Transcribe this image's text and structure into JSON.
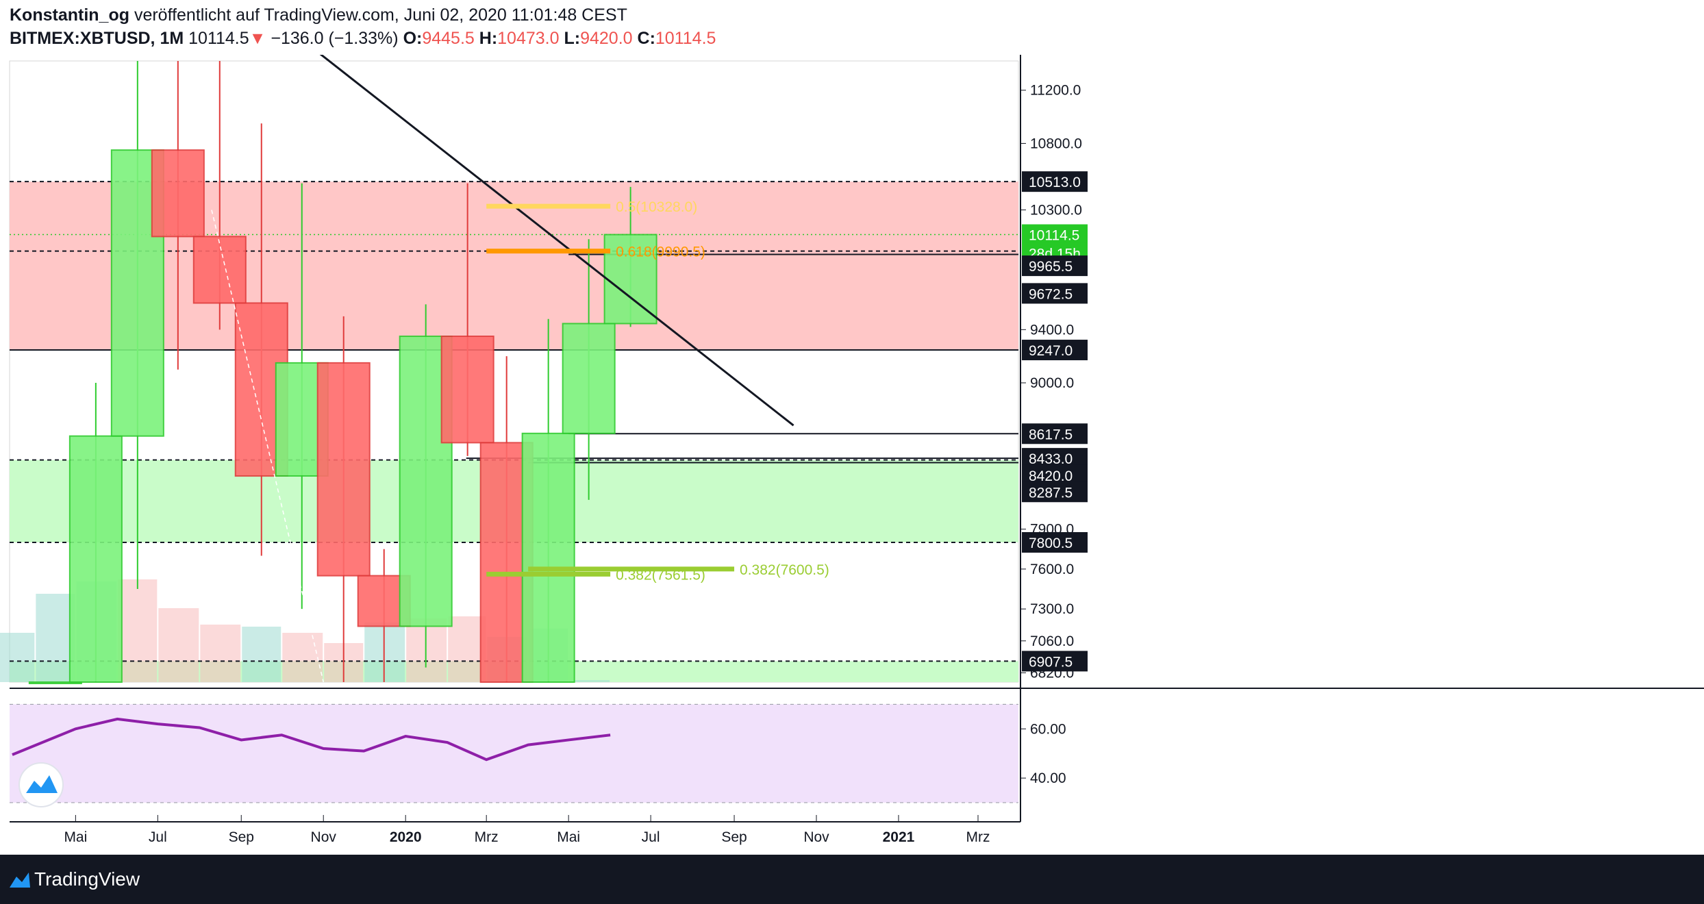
{
  "header": {
    "author": "Konstantin_og",
    "published_text": "veröffentlicht auf TradingView.com, Juni 02, 2020 11:01:48 CEST",
    "symbol": "BITMEX:XBTUSD, 1M",
    "last_price": "10114.5",
    "change_arrow": "▼",
    "change": "−136.0 (−1.33%)",
    "open_label": "O:",
    "open_value": "9445.5",
    "high_label": "H:",
    "high_value": "10473.0",
    "low_label": "L:",
    "low_value": "9420.0",
    "close_label": "C:",
    "close_value": "10114.5"
  },
  "footer": {
    "brand": "TradingView"
  },
  "colors": {
    "up_body": "#7cf27c",
    "up_border": "#2ecc2e",
    "down_body": "#ff6b6b",
    "down_border": "#e03b3b",
    "resistance_zone": "#ffc4c4",
    "support_zone": "#c6fcc6",
    "rsi_line": "#8e1fa8",
    "rsi_band": "#f1e1fb",
    "fib_yellow": "#ffd75e",
    "fib_orange": "#ff9800",
    "fib_green": "#9acd32"
  },
  "chart_data": {
    "type": "candlestick",
    "price_axis": {
      "range": [
        6750,
        11420
      ],
      "ticks": [
        "11200.0",
        "10800.0",
        "10300.0",
        "9400.0",
        "9000.0",
        "7900.0",
        "7600.0",
        "7300.0",
        "7060.0",
        "6820.0"
      ]
    },
    "time_axis": {
      "range": [
        "2019-03-13",
        "2021-03-31"
      ],
      "ticks": [
        {
          "label": "Mai",
          "date": "2019-05-01",
          "bold": false
        },
        {
          "label": "Jul",
          "date": "2019-07-01",
          "bold": false
        },
        {
          "label": "Sep",
          "date": "2019-09-01",
          "bold": false
        },
        {
          "label": "Nov",
          "date": "2019-11-01",
          "bold": false
        },
        {
          "label": "2020",
          "date": "2020-01-01",
          "bold": true
        },
        {
          "label": "Mrz",
          "date": "2020-03-01",
          "bold": false
        },
        {
          "label": "Mai",
          "date": "2020-05-01",
          "bold": false
        },
        {
          "label": "Jul",
          "date": "2020-07-01",
          "bold": false
        },
        {
          "label": "Sep",
          "date": "2020-09-01",
          "bold": false
        },
        {
          "label": "Nov",
          "date": "2020-11-01",
          "bold": false
        },
        {
          "label": "2021",
          "date": "2021-01-01",
          "bold": true
        },
        {
          "label": "Mrz",
          "date": "2021-03-01",
          "bold": false
        }
      ]
    },
    "candles": [
      {
        "month": "2019-04",
        "open": 4100,
        "high": 5600,
        "low": 4000,
        "close": 5300
      },
      {
        "month": "2019-05",
        "open": 5300,
        "high": 9000,
        "low": 5250,
        "close": 8600
      },
      {
        "month": "2019-06",
        "open": 8600,
        "high": 13880,
        "low": 7450,
        "close": 10750
      },
      {
        "month": "2019-07",
        "open": 10750,
        "high": 13200,
        "low": 9100,
        "close": 10100
      },
      {
        "month": "2019-08",
        "open": 10100,
        "high": 12300,
        "low": 9400,
        "close": 9600
      },
      {
        "month": "2019-09",
        "open": 9600,
        "high": 10950,
        "low": 7700,
        "close": 8300
      },
      {
        "month": "2019-10",
        "open": 8300,
        "high": 10500,
        "low": 7300,
        "close": 9150
      },
      {
        "month": "2019-11",
        "open": 9150,
        "high": 9500,
        "low": 6500,
        "close": 7550
      },
      {
        "month": "2019-12",
        "open": 7550,
        "high": 7750,
        "low": 6400,
        "close": 7170
      },
      {
        "month": "2020-01",
        "open": 7170,
        "high": 9590,
        "low": 6860,
        "close": 9350
      },
      {
        "month": "2020-02",
        "open": 9350,
        "high": 10500,
        "low": 8450,
        "close": 8550
      },
      {
        "month": "2020-03",
        "open": 8550,
        "high": 9200,
        "low": 3800,
        "close": 6400
      },
      {
        "month": "2020-04",
        "open": 6400,
        "high": 9480,
        "low": 6200,
        "close": 8620
      },
      {
        "month": "2020-05",
        "open": 8620,
        "high": 10080,
        "low": 8120,
        "close": 9445.5
      },
      {
        "month": "2020-06",
        "open": 9445.5,
        "high": 10473.0,
        "low": 9420.0,
        "close": 10114.5
      }
    ],
    "volume": [
      {
        "month": "2019-03",
        "value": 0.24,
        "direction": "up"
      },
      {
        "month": "2019-04",
        "value": 0.43,
        "direction": "up"
      },
      {
        "month": "2019-05",
        "value": 0.49,
        "direction": "up"
      },
      {
        "month": "2019-06",
        "value": 0.5,
        "direction": "down"
      },
      {
        "month": "2019-07",
        "value": 0.36,
        "direction": "down"
      },
      {
        "month": "2019-08",
        "value": 0.28,
        "direction": "down"
      },
      {
        "month": "2019-09",
        "value": 0.27,
        "direction": "up"
      },
      {
        "month": "2019-10",
        "value": 0.24,
        "direction": "down"
      },
      {
        "month": "2019-11",
        "value": 0.19,
        "direction": "down"
      },
      {
        "month": "2019-12",
        "value": 0.29,
        "direction": "up"
      },
      {
        "month": "2020-01",
        "value": 0.31,
        "direction": "down"
      },
      {
        "month": "2020-02",
        "value": 0.32,
        "direction": "down"
      },
      {
        "month": "2020-03",
        "value": 0.22,
        "direction": "up"
      },
      {
        "month": "2020-04",
        "value": 0.26,
        "direction": "up"
      },
      {
        "month": "2020-05",
        "value": 0.01,
        "direction": "up"
      }
    ],
    "zones": [
      {
        "name": "resistance",
        "from": 9247.0,
        "to": 10513.0
      },
      {
        "name": "support",
        "from": 7800.5,
        "to": 8420.0
      },
      {
        "name": "support-low",
        "from": 6750,
        "to": 6907.5
      }
    ],
    "dashed_levels": [
      10513.0,
      9990.5,
      8420.0,
      7800.5,
      6907.5
    ],
    "solid_levels": [
      {
        "price": 9247.0,
        "from": "2019-03-13"
      },
      {
        "price": 9965.5,
        "from": "2020-05-01"
      },
      {
        "price": 8617.5,
        "from": "2020-05-01"
      },
      {
        "price": 8433.0,
        "from": "2020-02-15"
      },
      {
        "price": 8400.0,
        "from": "2020-04-01"
      }
    ],
    "current_price_line": 10114.5,
    "trendline": {
      "from": {
        "date": "2019-10-01",
        "price": 11700
      },
      "to": {
        "date": "2020-10-15",
        "price": 8680
      }
    },
    "fib_levels": [
      {
        "label": "0.5(10328.0)",
        "price": 10328.0,
        "from": "2020-03-01",
        "to": "2020-06-01",
        "color": "#ffd75e",
        "label_visible": true
      },
      {
        "label": "0.618(9990.5)",
        "price": 9990.5,
        "from": "2020-03-01",
        "to": "2020-06-01",
        "color": "#ff9800",
        "label_visible": true
      },
      {
        "label": "0.382(7561.5)",
        "price": 7561.5,
        "from": "2020-03-01",
        "to": "2020-06-01",
        "color": "#9acd32",
        "label_visible": true
      },
      {
        "label": "0.382(7600.5)",
        "price": 7600.5,
        "from": "2020-04-01",
        "to": "2020-09-01",
        "color": "#9acd32",
        "label_visible": true
      }
    ],
    "price_tags": [
      {
        "label": "10513.0",
        "price": 10513.0,
        "bg": "#131722"
      },
      {
        "label": "10114.5",
        "price": 10114.5,
        "bg": "#26c926"
      },
      {
        "label": "28d 15h",
        "price": 9975,
        "bg": "#26c926"
      },
      {
        "label": "9965.5",
        "price": 9880,
        "bg": "#131722"
      },
      {
        "label": "9672.5",
        "price": 9672.5,
        "bg": "#131722"
      },
      {
        "label": "9247.0",
        "price": 9247.0,
        "bg": "#131722"
      },
      {
        "label": "8617.5",
        "price": 8617.5,
        "bg": "#131722"
      },
      {
        "label": "8433.0",
        "price": 8433.0,
        "bg": "#131722"
      },
      {
        "label": "8420.0",
        "price": 8305,
        "bg": "#131722"
      },
      {
        "label": "8287.5",
        "price": 8180,
        "bg": "#131722"
      },
      {
        "label": "7800.5",
        "price": 7800.5,
        "bg": "#131722"
      },
      {
        "label": "6907.5",
        "price": 6907.5,
        "bg": "#131722"
      }
    ],
    "rsi": {
      "range": [
        25,
        74
      ],
      "band": [
        30,
        70
      ],
      "ticks": [
        "60.00",
        "40.00"
      ],
      "points": [
        {
          "date": "2019-03-15",
          "value": 49.5
        },
        {
          "date": "2019-05-01",
          "value": 60.0
        },
        {
          "date": "2019-06-01",
          "value": 64.0
        },
        {
          "date": "2019-07-01",
          "value": 62.0
        },
        {
          "date": "2019-08-01",
          "value": 60.5
        },
        {
          "date": "2019-09-01",
          "value": 55.5
        },
        {
          "date": "2019-10-01",
          "value": 57.5
        },
        {
          "date": "2019-11-01",
          "value": 52.0
        },
        {
          "date": "2019-12-01",
          "value": 51.0
        },
        {
          "date": "2020-01-01",
          "value": 57.0
        },
        {
          "date": "2020-02-01",
          "value": 54.5
        },
        {
          "date": "2020-03-01",
          "value": 47.5
        },
        {
          "date": "2020-04-01",
          "value": 53.5
        },
        {
          "date": "2020-05-01",
          "value": 55.5
        },
        {
          "date": "2020-06-01",
          "value": 57.5
        }
      ]
    }
  }
}
